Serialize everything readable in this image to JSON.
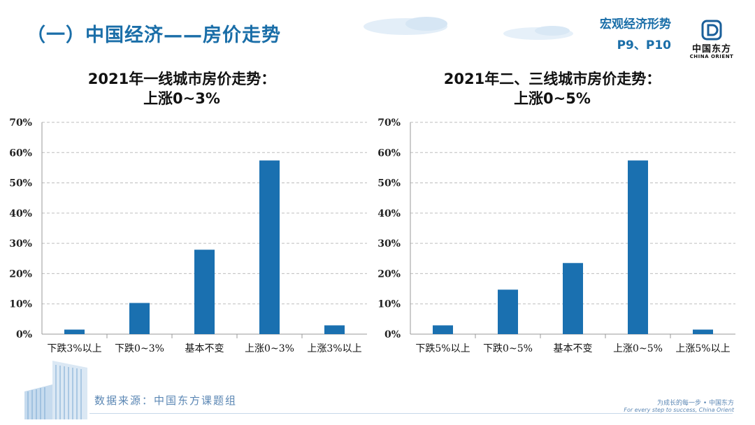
{
  "header": {
    "title": "（一）中国经济——房价走势",
    "tag_line1": "宏观经济形势",
    "tag_line2": "P9、P10",
    "logo_cn": "中国东方",
    "logo_en": "CHINA ORIENT"
  },
  "colors": {
    "bar": "#1a70b0",
    "accent": "#1a6ea8",
    "grid": "#bdbdbd"
  },
  "chart_data": [
    {
      "type": "bar",
      "title_line1": "2021年一线城市房价走势：",
      "title_line2": "上涨0~3%",
      "categories": [
        "下跌3%以上",
        "下跌0~3%",
        "基本不变",
        "上涨0~3%",
        "上涨3%以上"
      ],
      "values": [
        1.5,
        10.3,
        27.9,
        57.4,
        2.9
      ],
      "ylim": [
        0,
        70
      ],
      "yticks": [
        "0%",
        "10%",
        "20%",
        "30%",
        "40%",
        "50%",
        "60%",
        "70%"
      ],
      "grid": true
    },
    {
      "type": "bar",
      "title_line1": "2021年二、三线城市房价走势：",
      "title_line2": "上涨0~5%",
      "categories": [
        "下跌5%以上",
        "下跌0~5%",
        "基本不变",
        "上涨0~5%",
        "上涨5%以上"
      ],
      "values": [
        2.9,
        14.7,
        23.5,
        57.4,
        1.5
      ],
      "ylim": [
        0,
        70
      ],
      "yticks": [
        "0%",
        "10%",
        "20%",
        "30%",
        "40%",
        "50%",
        "60%",
        "70%"
      ],
      "grid": true
    }
  ],
  "footer": {
    "source": "数据来源：中国东方课题组",
    "slogan_cn": "为成长的每一步 • 中国东方",
    "slogan_en": "For every step to success, China Orient"
  }
}
